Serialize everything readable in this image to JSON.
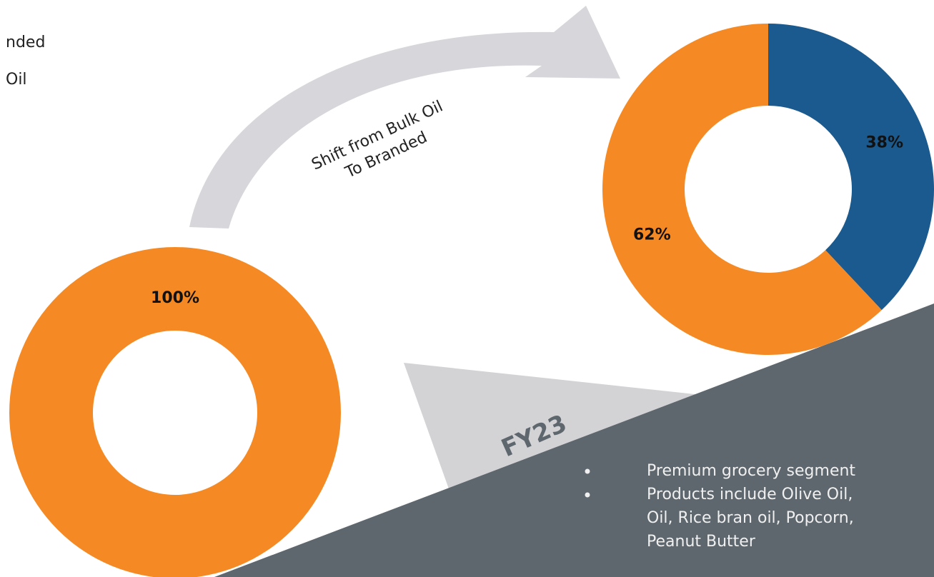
{
  "chart_data": [
    {
      "type": "pie",
      "donut": true,
      "values": [
        100
      ],
      "value_labels": [
        "100%"
      ],
      "colors": [
        "#F58A24"
      ]
    },
    {
      "type": "pie",
      "donut": true,
      "values": [
        38,
        62
      ],
      "value_labels": [
        "38%",
        "62%"
      ],
      "colors": [
        "#1B5A8E",
        "#F58A24"
      ]
    }
  ],
  "header_fragments": [
    "nded",
    "Oil"
  ],
  "arrow_label": [
    "Shift from Bulk Oil",
    "To Branded"
  ],
  "callout": "FY23",
  "bullets": [
    [
      "Premium grocery segment"
    ],
    [
      "Products include Olive Oil,",
      "Oil, Rice bran oil, Popcorn,",
      "Peanut Butter"
    ]
  ]
}
